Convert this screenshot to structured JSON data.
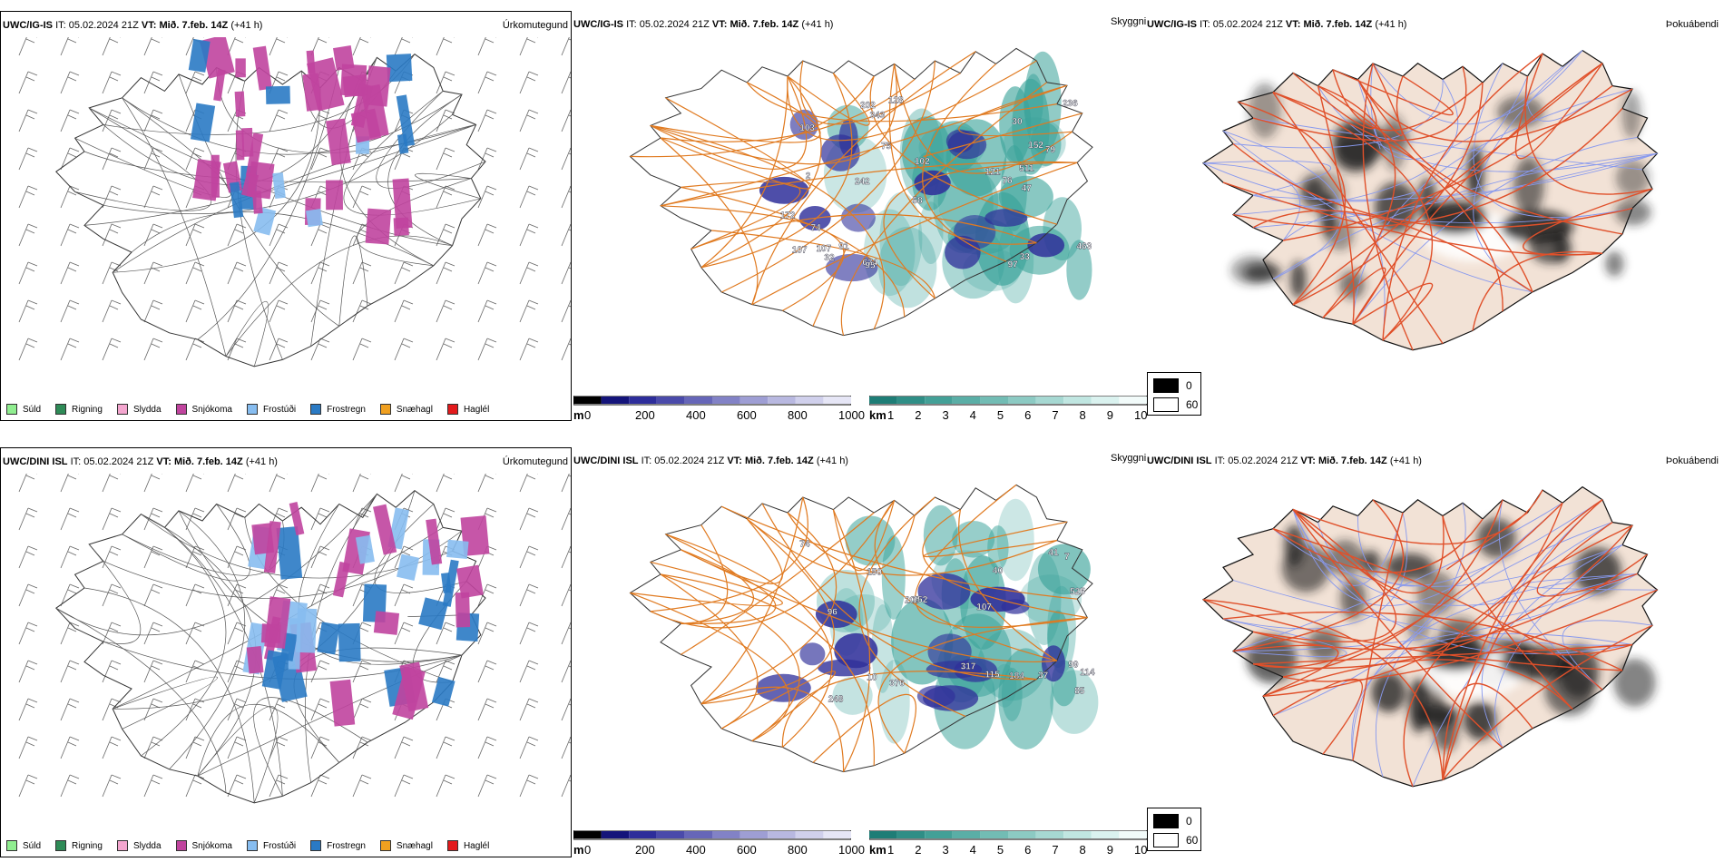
{
  "rows": [
    {
      "model": "UWC/IG-IS",
      "it_label": "IT:",
      "it_value": "05.02.2024 21Z",
      "vt_label": "VT:",
      "vt_value": "Mið. 7.feb. 14Z",
      "lead": "(+41 h)",
      "precip_title": "Úrkomutegund",
      "cloud_title": "Skyggni",
      "fog_title": "Þokuábendi",
      "cloud_labels": [
        "511",
        "107",
        "74",
        "343",
        "172",
        "76",
        "242",
        "58",
        "121",
        "463",
        "97",
        "674",
        "47",
        "202",
        "79",
        "107",
        "75",
        "33",
        "103",
        "95",
        "128",
        "91",
        "102",
        "236",
        "30",
        "32",
        "152",
        "2"
      ]
    },
    {
      "model": "UWC/DINI ISL",
      "it_label": "IT:",
      "it_value": "05.02.2024 21Z",
      "vt_label": "VT:",
      "vt_value": "Mið. 7.feb. 14Z",
      "lead": "(+41 h)",
      "precip_title": "Úrkomutegund",
      "cloud_title": "Skyggni",
      "fog_title": "Þokuábendi",
      "cloud_labels": [
        "376",
        "525",
        "96",
        "248",
        "209",
        "152",
        "150",
        "107",
        "317",
        "74",
        "114",
        "85",
        "37",
        "184",
        "41",
        "99",
        "10",
        "115",
        "40",
        "7"
      ]
    }
  ],
  "precip_legend": [
    {
      "label": "Súld",
      "color": "#90ee90"
    },
    {
      "label": "Rigning",
      "color": "#2e8b57"
    },
    {
      "label": "Slydda",
      "color": "#f4a6cf"
    },
    {
      "label": "Snjókoma",
      "color": "#c0449e"
    },
    {
      "label": "Frostúði",
      "color": "#87bdf0"
    },
    {
      "label": "Frostregn",
      "color": "#2a7ac4"
    },
    {
      "label": "Snæhagl",
      "color": "#f0a020"
    },
    {
      "label": "Haglél",
      "color": "#e31a1c"
    }
  ],
  "cloudbase_bar": {
    "unit": "m",
    "ticks": [
      "0",
      "200",
      "400",
      "600",
      "800",
      "1000"
    ]
  },
  "visibility_bar": {
    "unit": "km",
    "ticks": [
      "1",
      "2",
      "3",
      "4",
      "5",
      "6",
      "7",
      "8",
      "9",
      "10"
    ]
  },
  "fog_legend": {
    "low": "0",
    "high": "60"
  },
  "colors": {
    "snow": "#c0449e",
    "freezing_rain": "#2a7ac4",
    "freezing_drizzle": "#87bdf0",
    "cloud_low": "#2f2f9a",
    "visibility": "#3aa39a",
    "roads": "#e07a20",
    "land_fog": "#f2e2d6"
  }
}
